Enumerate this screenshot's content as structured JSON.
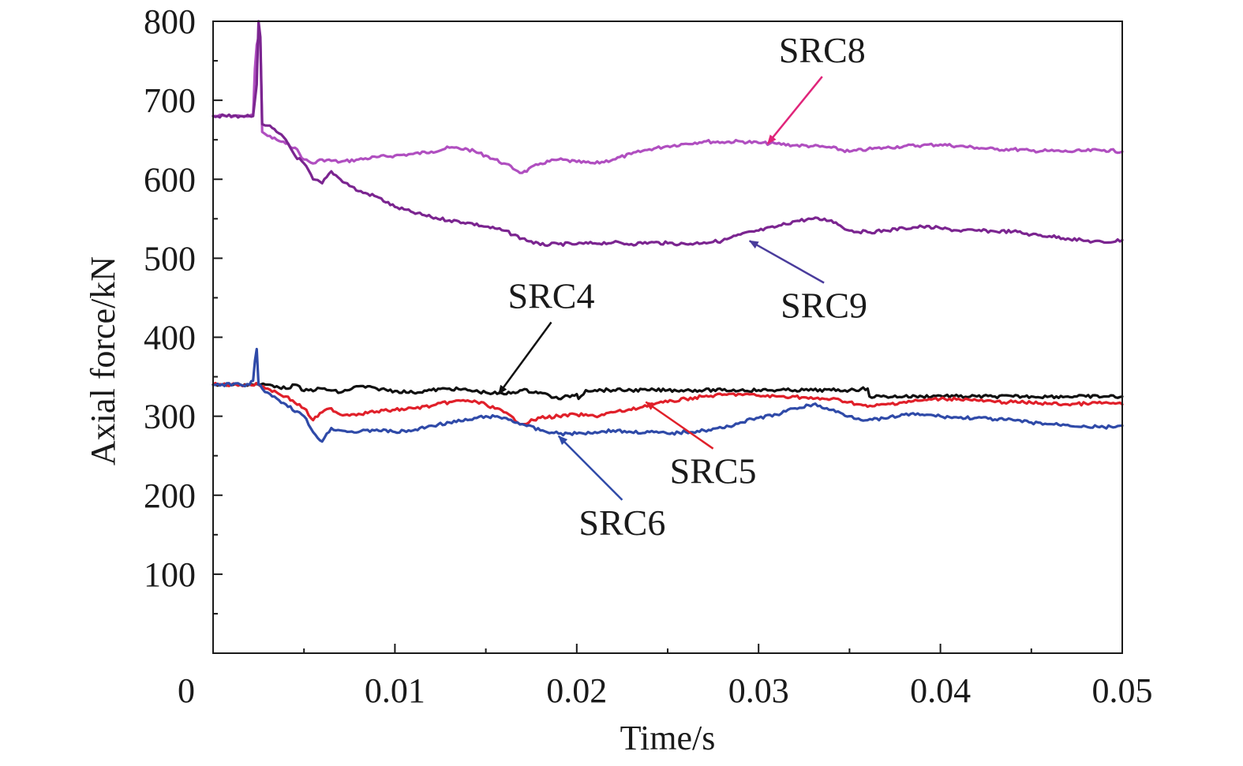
{
  "chart_data": {
    "type": "line",
    "title": "",
    "xlabel": "Time/s",
    "ylabel": "Axial force/kN",
    "xlim": [
      0,
      0.05
    ],
    "ylim": [
      0,
      800
    ],
    "x_ticks": [
      0,
      0.01,
      0.02,
      0.03,
      0.04,
      0.05
    ],
    "x_tick_labels": [
      "0",
      "0.01",
      "0.02",
      "0.03",
      "0.04",
      "0.05"
    ],
    "y_ticks": [
      100,
      200,
      300,
      400,
      500,
      600,
      700,
      800
    ],
    "y_tick_labels": [
      "100",
      "200",
      "300",
      "400",
      "500",
      "600",
      "700",
      "800"
    ],
    "grid": false,
    "legend": "none (series labeled by arrow annotations)",
    "series": [
      {
        "name": "SRC8",
        "color": "#b04fc0",
        "points": [
          [
            0,
            680
          ],
          [
            0.0015,
            680
          ],
          [
            0.0016,
            680
          ],
          [
            0.0018,
            680
          ],
          [
            0.002,
            680
          ],
          [
            0.0022,
            680
          ],
          [
            0.0023,
            740
          ],
          [
            0.0024,
            770
          ],
          [
            0.0025,
            780
          ],
          [
            0.0026,
            775
          ],
          [
            0.0027,
            660
          ],
          [
            0.003,
            655
          ],
          [
            0.0035,
            650
          ],
          [
            0.004,
            645
          ],
          [
            0.0045,
            640
          ],
          [
            0.005,
            625
          ],
          [
            0.0055,
            620
          ],
          [
            0.006,
            625
          ],
          [
            0.007,
            622
          ],
          [
            0.008,
            625
          ],
          [
            0.009,
            628
          ],
          [
            0.01,
            630
          ],
          [
            0.011,
            632
          ],
          [
            0.012,
            635
          ],
          [
            0.013,
            640
          ],
          [
            0.014,
            638
          ],
          [
            0.015,
            630
          ],
          [
            0.016,
            620
          ],
          [
            0.017,
            608
          ],
          [
            0.018,
            620
          ],
          [
            0.019,
            625
          ],
          [
            0.02,
            622
          ],
          [
            0.021,
            620
          ],
          [
            0.022,
            625
          ],
          [
            0.023,
            632
          ],
          [
            0.024,
            638
          ],
          [
            0.025,
            642
          ],
          [
            0.026,
            645
          ],
          [
            0.027,
            648
          ],
          [
            0.028,
            647
          ],
          [
            0.029,
            648
          ],
          [
            0.03,
            646
          ],
          [
            0.031,
            645
          ],
          [
            0.032,
            643
          ],
          [
            0.033,
            642
          ],
          [
            0.034,
            640
          ],
          [
            0.035,
            635
          ],
          [
            0.036,
            638
          ],
          [
            0.037,
            640
          ],
          [
            0.038,
            642
          ],
          [
            0.039,
            643
          ],
          [
            0.04,
            644
          ],
          [
            0.041,
            642
          ],
          [
            0.042,
            640
          ],
          [
            0.043,
            638
          ],
          [
            0.044,
            638
          ],
          [
            0.045,
            636
          ],
          [
            0.046,
            636
          ],
          [
            0.047,
            635
          ],
          [
            0.048,
            636
          ],
          [
            0.049,
            637
          ],
          [
            0.05,
            635
          ]
        ]
      },
      {
        "name": "SRC9",
        "color": "#7b2590",
        "points": [
          [
            0,
            680
          ],
          [
            0.0015,
            680
          ],
          [
            0.0018,
            680
          ],
          [
            0.002,
            680
          ],
          [
            0.0022,
            680
          ],
          [
            0.0023,
            700
          ],
          [
            0.0024,
            720
          ],
          [
            0.0025,
            800
          ],
          [
            0.0026,
            780
          ],
          [
            0.0027,
            670
          ],
          [
            0.003,
            668
          ],
          [
            0.0035,
            660
          ],
          [
            0.004,
            650
          ],
          [
            0.0045,
            630
          ],
          [
            0.005,
            620
          ],
          [
            0.0055,
            600
          ],
          [
            0.006,
            595
          ],
          [
            0.0065,
            610
          ],
          [
            0.007,
            600
          ],
          [
            0.008,
            585
          ],
          [
            0.009,
            578
          ],
          [
            0.01,
            565
          ],
          [
            0.011,
            558
          ],
          [
            0.012,
            552
          ],
          [
            0.013,
            548
          ],
          [
            0.014,
            545
          ],
          [
            0.015,
            540
          ],
          [
            0.016,
            535
          ],
          [
            0.017,
            525
          ],
          [
            0.018,
            517
          ],
          [
            0.019,
            518
          ],
          [
            0.02,
            518
          ],
          [
            0.021,
            519
          ],
          [
            0.022,
            520
          ],
          [
            0.023,
            518
          ],
          [
            0.024,
            520
          ],
          [
            0.025,
            519
          ],
          [
            0.026,
            518
          ],
          [
            0.027,
            520
          ],
          [
            0.028,
            522
          ],
          [
            0.029,
            530
          ],
          [
            0.03,
            535
          ],
          [
            0.031,
            540
          ],
          [
            0.032,
            547
          ],
          [
            0.033,
            550
          ],
          [
            0.034,
            548
          ],
          [
            0.035,
            535
          ],
          [
            0.036,
            533
          ],
          [
            0.037,
            535
          ],
          [
            0.038,
            538
          ],
          [
            0.039,
            540
          ],
          [
            0.04,
            538
          ],
          [
            0.041,
            535
          ],
          [
            0.042,
            535
          ],
          [
            0.043,
            534
          ],
          [
            0.044,
            534
          ],
          [
            0.045,
            530
          ],
          [
            0.046,
            528
          ],
          [
            0.047,
            525
          ],
          [
            0.048,
            522
          ],
          [
            0.049,
            520
          ],
          [
            0.05,
            523
          ]
        ]
      },
      {
        "name": "SRC4",
        "color": "#111111",
        "points": [
          [
            0,
            340
          ],
          [
            0.0015,
            340
          ],
          [
            0.002,
            340
          ],
          [
            0.0025,
            340
          ],
          [
            0.003,
            340
          ],
          [
            0.0035,
            338
          ],
          [
            0.004,
            335
          ],
          [
            0.0045,
            340
          ],
          [
            0.005,
            332
          ],
          [
            0.006,
            335
          ],
          [
            0.007,
            330
          ],
          [
            0.008,
            338
          ],
          [
            0.009,
            335
          ],
          [
            0.01,
            332
          ],
          [
            0.011,
            330
          ],
          [
            0.012,
            333
          ],
          [
            0.013,
            335
          ],
          [
            0.014,
            333
          ],
          [
            0.015,
            330
          ],
          [
            0.016,
            328
          ],
          [
            0.017,
            333
          ],
          [
            0.018,
            330
          ],
          [
            0.019,
            322
          ],
          [
            0.02,
            328
          ],
          [
            0.0201,
            322
          ],
          [
            0.0205,
            333
          ],
          [
            0.021,
            333
          ],
          [
            0.022,
            333
          ],
          [
            0.023,
            333
          ],
          [
            0.024,
            333
          ],
          [
            0.025,
            333
          ],
          [
            0.026,
            333
          ],
          [
            0.027,
            333
          ],
          [
            0.028,
            333
          ],
          [
            0.029,
            333
          ],
          [
            0.03,
            333
          ],
          [
            0.031,
            333
          ],
          [
            0.032,
            333
          ],
          [
            0.033,
            333
          ],
          [
            0.034,
            333
          ],
          [
            0.035,
            333
          ],
          [
            0.036,
            335
          ],
          [
            0.0361,
            325
          ],
          [
            0.037,
            325
          ],
          [
            0.038,
            325
          ],
          [
            0.039,
            325
          ],
          [
            0.04,
            326
          ],
          [
            0.041,
            325
          ],
          [
            0.042,
            325
          ],
          [
            0.043,
            325
          ],
          [
            0.044,
            325
          ],
          [
            0.045,
            325
          ],
          [
            0.046,
            325
          ],
          [
            0.047,
            325
          ],
          [
            0.048,
            325
          ],
          [
            0.049,
            325
          ],
          [
            0.05,
            325
          ]
        ]
      },
      {
        "name": "SRC5",
        "color": "#e0202a",
        "points": [
          [
            0,
            340
          ],
          [
            0.0015,
            340
          ],
          [
            0.002,
            340
          ],
          [
            0.0025,
            340
          ],
          [
            0.003,
            335
          ],
          [
            0.004,
            325
          ],
          [
            0.005,
            310
          ],
          [
            0.0055,
            295
          ],
          [
            0.006,
            305
          ],
          [
            0.0065,
            310
          ],
          [
            0.007,
            302
          ],
          [
            0.008,
            303
          ],
          [
            0.009,
            306
          ],
          [
            0.01,
            308
          ],
          [
            0.011,
            310
          ],
          [
            0.012,
            313
          ],
          [
            0.013,
            318
          ],
          [
            0.014,
            320
          ],
          [
            0.015,
            315
          ],
          [
            0.016,
            305
          ],
          [
            0.017,
            290
          ],
          [
            0.018,
            298
          ],
          [
            0.019,
            300
          ],
          [
            0.02,
            302
          ],
          [
            0.021,
            300
          ],
          [
            0.022,
            305
          ],
          [
            0.023,
            308
          ],
          [
            0.024,
            315
          ],
          [
            0.025,
            318
          ],
          [
            0.026,
            322
          ],
          [
            0.027,
            325
          ],
          [
            0.028,
            327
          ],
          [
            0.029,
            328
          ],
          [
            0.03,
            326
          ],
          [
            0.031,
            325
          ],
          [
            0.032,
            325
          ],
          [
            0.033,
            322
          ],
          [
            0.034,
            322
          ],
          [
            0.035,
            318
          ],
          [
            0.036,
            312
          ],
          [
            0.037,
            315
          ],
          [
            0.038,
            318
          ],
          [
            0.039,
            320
          ],
          [
            0.04,
            322
          ],
          [
            0.041,
            322
          ],
          [
            0.042,
            320
          ],
          [
            0.043,
            318
          ],
          [
            0.044,
            318
          ],
          [
            0.045,
            317
          ],
          [
            0.046,
            316
          ],
          [
            0.047,
            315
          ],
          [
            0.048,
            316
          ],
          [
            0.049,
            317
          ],
          [
            0.05,
            315
          ]
        ]
      },
      {
        "name": "SRC6",
        "color": "#2f4aa8",
        "points": [
          [
            0,
            340
          ],
          [
            0.0015,
            340
          ],
          [
            0.002,
            340
          ],
          [
            0.0022,
            345
          ],
          [
            0.0023,
            370
          ],
          [
            0.0024,
            385
          ],
          [
            0.0025,
            340
          ],
          [
            0.0027,
            335
          ],
          [
            0.003,
            330
          ],
          [
            0.004,
            315
          ],
          [
            0.005,
            300
          ],
          [
            0.0055,
            280
          ],
          [
            0.006,
            268
          ],
          [
            0.0065,
            285
          ],
          [
            0.007,
            282
          ],
          [
            0.008,
            280
          ],
          [
            0.009,
            283
          ],
          [
            0.01,
            280
          ],
          [
            0.011,
            282
          ],
          [
            0.012,
            288
          ],
          [
            0.013,
            292
          ],
          [
            0.014,
            295
          ],
          [
            0.015,
            300
          ],
          [
            0.016,
            298
          ],
          [
            0.017,
            290
          ],
          [
            0.018,
            282
          ],
          [
            0.019,
            278
          ],
          [
            0.02,
            278
          ],
          [
            0.021,
            280
          ],
          [
            0.022,
            282
          ],
          [
            0.023,
            280
          ],
          [
            0.024,
            280
          ],
          [
            0.025,
            278
          ],
          [
            0.026,
            280
          ],
          [
            0.027,
            282
          ],
          [
            0.028,
            285
          ],
          [
            0.029,
            292
          ],
          [
            0.03,
            298
          ],
          [
            0.031,
            302
          ],
          [
            0.032,
            310
          ],
          [
            0.033,
            315
          ],
          [
            0.034,
            308
          ],
          [
            0.035,
            300
          ],
          [
            0.036,
            295
          ],
          [
            0.037,
            297
          ],
          [
            0.038,
            302
          ],
          [
            0.039,
            302
          ],
          [
            0.04,
            300
          ],
          [
            0.041,
            298
          ],
          [
            0.042,
            298
          ],
          [
            0.043,
            296
          ],
          [
            0.044,
            295
          ],
          [
            0.045,
            292
          ],
          [
            0.046,
            290
          ],
          [
            0.047,
            289
          ],
          [
            0.048,
            287
          ],
          [
            0.049,
            286
          ],
          [
            0.05,
            288
          ]
        ]
      }
    ],
    "annotations": [
      {
        "text": "SRC8",
        "color": "#e0257a",
        "arrow_to": [
          0.0305,
          645
        ],
        "label_at": [
          0.0335,
          748
        ]
      },
      {
        "text": "SRC9",
        "color": "#4a3c9c",
        "arrow_to": [
          0.0295,
          522
        ],
        "label_at": [
          0.0336,
          425
        ]
      },
      {
        "text": "SRC4",
        "color": "#111111",
        "arrow_to": [
          0.0157,
          328
        ],
        "label_at": [
          0.0186,
          437
        ]
      },
      {
        "text": "SRC5",
        "color": "#e0202a",
        "arrow_to": [
          0.0238,
          318
        ],
        "label_at": [
          0.0275,
          215
        ]
      },
      {
        "text": "SRC6",
        "color": "#2f4aa8",
        "arrow_to": [
          0.019,
          275
        ],
        "label_at": [
          0.0225,
          150
        ]
      }
    ]
  }
}
